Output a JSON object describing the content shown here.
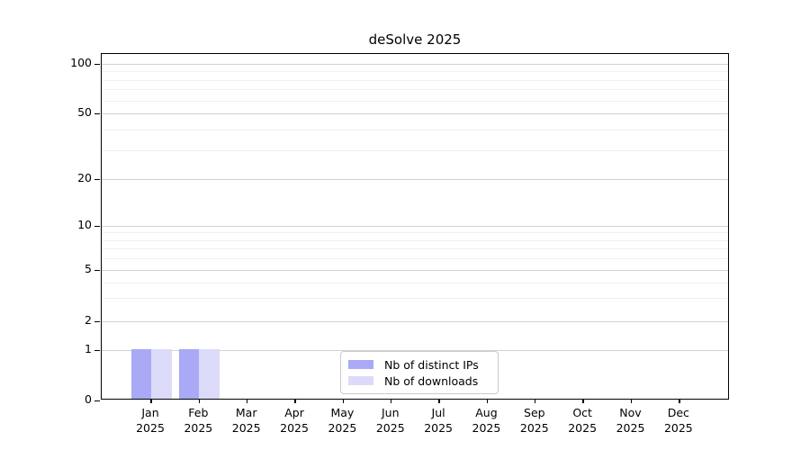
{
  "chart_data": {
    "type": "bar",
    "title": "deSolve 2025",
    "x": {
      "months": [
        "Jan",
        "Feb",
        "Mar",
        "Apr",
        "May",
        "Jun",
        "Jul",
        "Aug",
        "Sep",
        "Oct",
        "Nov",
        "Dec"
      ],
      "year": "2025"
    },
    "y_axis": {
      "scale": "log-like",
      "major_ticks": [
        0,
        1,
        2,
        5,
        10,
        20,
        50,
        100
      ],
      "minor_ticks": [
        3,
        4,
        6,
        7,
        8,
        9,
        30,
        40,
        60,
        70,
        80,
        90
      ],
      "ylim": [
        0,
        100
      ],
      "grid": "on"
    },
    "series": [
      {
        "name": "Nb of distinct IPs",
        "color": "#a9a9f6",
        "values": [
          1,
          1,
          0,
          0,
          0,
          0,
          0,
          0,
          0,
          0,
          0,
          0
        ]
      },
      {
        "name": "Nb of downloads",
        "color": "#dbdbf9",
        "values": [
          1,
          1,
          0,
          0,
          0,
          0,
          0,
          0,
          0,
          0,
          0,
          0
        ]
      }
    ],
    "legend": {
      "position": "bottom-center",
      "entries": [
        "Nb of distinct IPs",
        "Nb of downloads"
      ]
    }
  }
}
